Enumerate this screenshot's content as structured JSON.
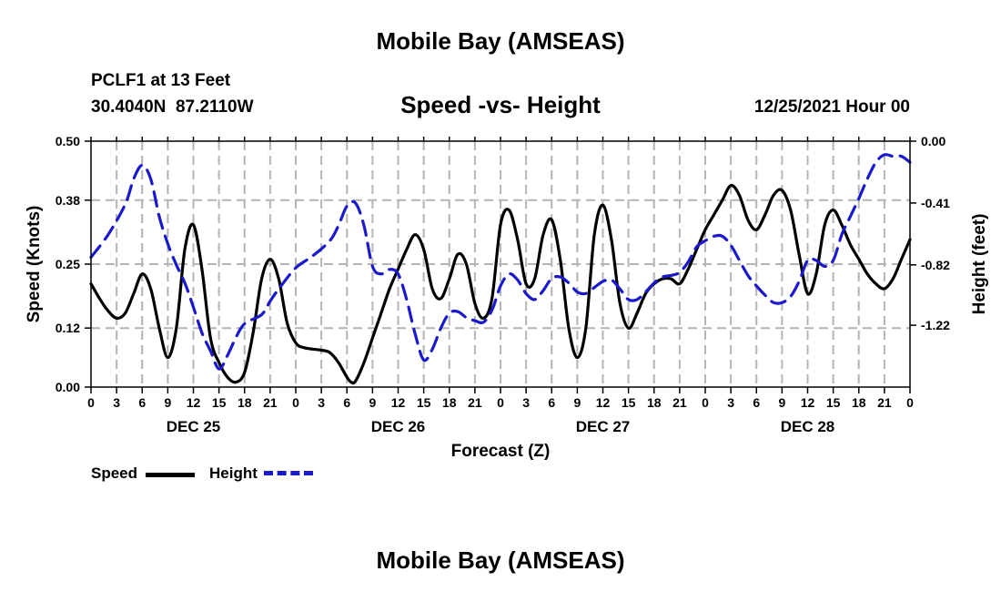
{
  "page": {
    "title": "Mobile Bay (AMSEAS)",
    "station": "PCLF1 at 13 Feet",
    "coords": "30.4040N  87.2110W",
    "subtitle": "Speed -vs- Height",
    "datetime": "12/25/2021 Hour 00",
    "footer_title": "Mobile Bay (AMSEAS)"
  },
  "legend": {
    "speed_label": "Speed",
    "height_label": "Height"
  },
  "colors": {
    "speed": "#000000",
    "height": "#1a1acc",
    "grid": "#b4b4b4"
  },
  "chart_data": {
    "type": "line",
    "title": "Speed -vs- Height",
    "xlabel": "Forecast (Z)",
    "ylabel": "Speed (Knots)",
    "y2label": "Height (feet)",
    "x_unit": "hours since 12/25/2021 00Z",
    "xlim": [
      0,
      96
    ],
    "ylim": [
      0,
      0.5
    ],
    "y2lim": [
      0.0,
      -1.63
    ],
    "y_ticks": [
      "0.00",
      "0.12",
      "0.25",
      "0.38",
      "0.50"
    ],
    "y2_ticks": [
      "0.00",
      "-0.41",
      "-0.82",
      "-1.22"
    ],
    "x_tick_labels": [
      "0",
      "3",
      "6",
      "9",
      "12",
      "15",
      "18",
      "21",
      "0",
      "3",
      "6",
      "9",
      "12",
      "15",
      "18",
      "21",
      "0",
      "3",
      "6",
      "9",
      "12",
      "15",
      "18",
      "21",
      "0",
      "3",
      "6",
      "9",
      "12",
      "15",
      "18",
      "21",
      "0"
    ],
    "day_labels": [
      "DEC 25",
      "DEC 26",
      "DEC 27",
      "DEC 28"
    ],
    "series": [
      {
        "name": "Speed",
        "axis": "left",
        "style": "solid",
        "points": [
          [
            0,
            0.21
          ],
          [
            1,
            0.18
          ],
          [
            2,
            0.155
          ],
          [
            3,
            0.14
          ],
          [
            4,
            0.15
          ],
          [
            5,
            0.19
          ],
          [
            6,
            0.23
          ],
          [
            7,
            0.2
          ],
          [
            8,
            0.12
          ],
          [
            9,
            0.06
          ],
          [
            10,
            0.12
          ],
          [
            11,
            0.28
          ],
          [
            12,
            0.33
          ],
          [
            13,
            0.24
          ],
          [
            14,
            0.1
          ],
          [
            15,
            0.05
          ],
          [
            16,
            0.02
          ],
          [
            17,
            0.01
          ],
          [
            18,
            0.03
          ],
          [
            19,
            0.11
          ],
          [
            20,
            0.22
          ],
          [
            21,
            0.26
          ],
          [
            22,
            0.22
          ],
          [
            23,
            0.13
          ],
          [
            24,
            0.09
          ],
          [
            25,
            0.08
          ],
          [
            27,
            0.075
          ],
          [
            28,
            0.07
          ],
          [
            29,
            0.05
          ],
          [
            30,
            0.02
          ],
          [
            30.5,
            0.01
          ],
          [
            31,
            0.012
          ],
          [
            32,
            0.05
          ],
          [
            33,
            0.1
          ],
          [
            34,
            0.15
          ],
          [
            35,
            0.2
          ],
          [
            36,
            0.24
          ],
          [
            37,
            0.28
          ],
          [
            38,
            0.31
          ],
          [
            39,
            0.28
          ],
          [
            40,
            0.2
          ],
          [
            41,
            0.18
          ],
          [
            42,
            0.22
          ],
          [
            43,
            0.27
          ],
          [
            44,
            0.25
          ],
          [
            45,
            0.17
          ],
          [
            46,
            0.14
          ],
          [
            47,
            0.18
          ],
          [
            48,
            0.33
          ],
          [
            49,
            0.36
          ],
          [
            50,
            0.3
          ],
          [
            51,
            0.21
          ],
          [
            52,
            0.22
          ],
          [
            53,
            0.31
          ],
          [
            54,
            0.34
          ],
          [
            55,
            0.26
          ],
          [
            56,
            0.12
          ],
          [
            57,
            0.06
          ],
          [
            58,
            0.12
          ],
          [
            59,
            0.31
          ],
          [
            60,
            0.37
          ],
          [
            61,
            0.3
          ],
          [
            62,
            0.17
          ],
          [
            63,
            0.12
          ],
          [
            64,
            0.15
          ],
          [
            65,
            0.19
          ],
          [
            66,
            0.21
          ],
          [
            67,
            0.22
          ],
          [
            68,
            0.22
          ],
          [
            69,
            0.21
          ],
          [
            70,
            0.24
          ],
          [
            71,
            0.28
          ],
          [
            72,
            0.32
          ],
          [
            73,
            0.35
          ],
          [
            74,
            0.38
          ],
          [
            75,
            0.41
          ],
          [
            76,
            0.39
          ],
          [
            77,
            0.34
          ],
          [
            78,
            0.32
          ],
          [
            79,
            0.35
          ],
          [
            80,
            0.39
          ],
          [
            81,
            0.4
          ],
          [
            82,
            0.36
          ],
          [
            83,
            0.27
          ],
          [
            84,
            0.19
          ],
          [
            85,
            0.23
          ],
          [
            86,
            0.33
          ],
          [
            87,
            0.36
          ],
          [
            88,
            0.33
          ],
          [
            89,
            0.29
          ],
          [
            90,
            0.26
          ],
          [
            91,
            0.23
          ],
          [
            92,
            0.21
          ],
          [
            93,
            0.2
          ],
          [
            94,
            0.22
          ],
          [
            95,
            0.26
          ],
          [
            96,
            0.3
          ]
        ]
      },
      {
        "name": "Height",
        "axis": "right",
        "style": "dashed",
        "points": [
          [
            0,
            -0.77
          ],
          [
            2,
            -0.62
          ],
          [
            4,
            -0.42
          ],
          [
            5,
            -0.25
          ],
          [
            6,
            -0.16
          ],
          [
            7,
            -0.25
          ],
          [
            8,
            -0.5
          ],
          [
            9,
            -0.68
          ],
          [
            10,
            -0.82
          ],
          [
            11,
            -0.94
          ],
          [
            12,
            -1.1
          ],
          [
            13,
            -1.27
          ],
          [
            14,
            -1.39
          ],
          [
            15,
            -1.51
          ],
          [
            16,
            -1.42
          ],
          [
            17,
            -1.3
          ],
          [
            18,
            -1.21
          ],
          [
            20,
            -1.15
          ],
          [
            21,
            -1.06
          ],
          [
            22,
            -0.98
          ],
          [
            24,
            -0.84
          ],
          [
            26,
            -0.76
          ],
          [
            28,
            -0.66
          ],
          [
            29,
            -0.56
          ],
          [
            30,
            -0.43
          ],
          [
            31,
            -0.41
          ],
          [
            32,
            -0.56
          ],
          [
            33,
            -0.83
          ],
          [
            34,
            -0.88
          ],
          [
            35,
            -0.85
          ],
          [
            36,
            -0.88
          ],
          [
            37,
            -1.05
          ],
          [
            38,
            -1.28
          ],
          [
            39,
            -1.45
          ],
          [
            40,
            -1.38
          ],
          [
            41,
            -1.24
          ],
          [
            42,
            -1.14
          ],
          [
            43,
            -1.13
          ],
          [
            44,
            -1.17
          ],
          [
            45,
            -1.19
          ],
          [
            46,
            -1.2
          ],
          [
            47,
            -1.12
          ],
          [
            48,
            -0.96
          ],
          [
            49,
            -0.88
          ],
          [
            50,
            -0.92
          ],
          [
            51,
            -1.01
          ],
          [
            52,
            -1.05
          ],
          [
            53,
            -0.99
          ],
          [
            54,
            -0.91
          ],
          [
            55,
            -0.9
          ],
          [
            56,
            -0.94
          ],
          [
            57,
            -1.0
          ],
          [
            58,
            -1.01
          ],
          [
            59,
            -0.97
          ],
          [
            60,
            -0.93
          ],
          [
            61,
            -0.92
          ],
          [
            62,
            -0.98
          ],
          [
            63,
            -1.05
          ],
          [
            64,
            -1.05
          ],
          [
            65,
            -1.0
          ],
          [
            66,
            -0.94
          ],
          [
            67,
            -0.9
          ],
          [
            68,
            -0.89
          ],
          [
            69,
            -0.87
          ],
          [
            70,
            -0.8
          ],
          [
            71,
            -0.7
          ],
          [
            72,
            -0.66
          ],
          [
            73,
            -0.63
          ],
          [
            74,
            -0.63
          ],
          [
            75,
            -0.69
          ],
          [
            76,
            -0.79
          ],
          [
            77,
            -0.89
          ],
          [
            78,
            -0.96
          ],
          [
            79,
            -1.02
          ],
          [
            80,
            -1.07
          ],
          [
            81,
            -1.07
          ],
          [
            82,
            -1.03
          ],
          [
            83,
            -0.93
          ],
          [
            84,
            -0.79
          ],
          [
            85,
            -0.79
          ],
          [
            86,
            -0.83
          ],
          [
            87,
            -0.79
          ],
          [
            88,
            -0.62
          ],
          [
            89,
            -0.5
          ],
          [
            90,
            -0.38
          ],
          [
            91,
            -0.25
          ],
          [
            92,
            -0.14
          ],
          [
            93,
            -0.09
          ],
          [
            94,
            -0.1
          ],
          [
            95,
            -0.1
          ],
          [
            96,
            -0.14
          ]
        ]
      }
    ]
  }
}
